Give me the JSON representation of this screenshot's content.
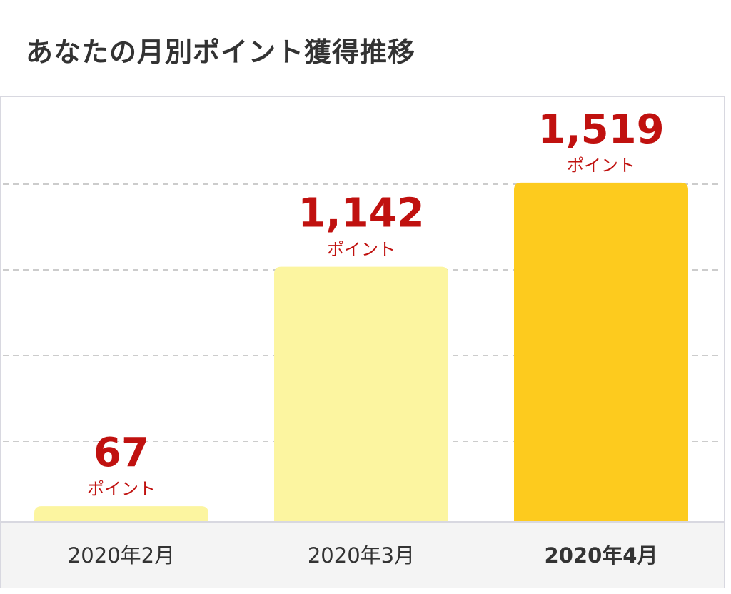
{
  "title": "あなたの月別ポイント獲得推移",
  "colors": {
    "bar_past": "#fcf5a0",
    "bar_current": "#fdcb1e",
    "value_label": "#c0110f",
    "axis_text": "#333333",
    "grid": "#cccccc"
  },
  "chart_data": {
    "type": "bar",
    "categories": [
      "2020年2月",
      "2020年3月",
      "2020年4月"
    ],
    "values": [
      67,
      1142,
      1519
    ],
    "value_labels": [
      "67",
      "1,142",
      "1,519"
    ],
    "unit_label": "ポイント",
    "highlighted_category": "2020年4月",
    "ylim": [
      0,
      1900
    ],
    "grid": true
  }
}
